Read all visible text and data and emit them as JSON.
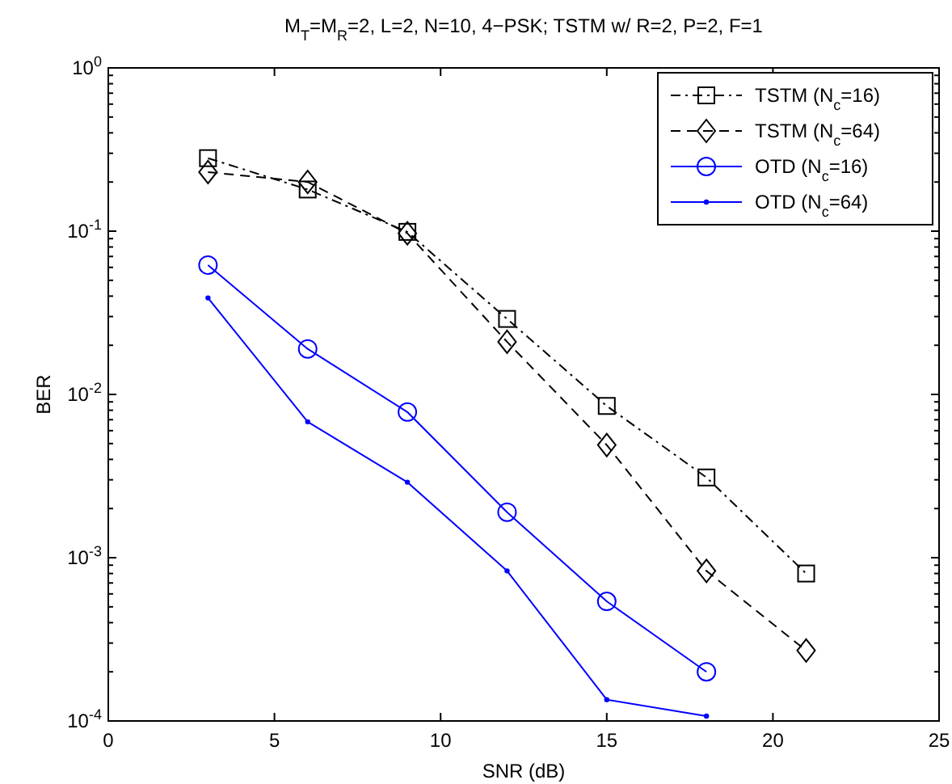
{
  "chart_data": {
    "type": "line",
    "title": "M$_{T}$=M$_{R}$=2, L=2, N=10, 4−PSK;   TSTM w/ R=2, P=2, F=1",
    "xlabel": "SNR (dB)",
    "ylabel": "BER",
    "log": "y",
    "grid": false,
    "legend": "top right",
    "x": [
      3,
      6,
      9,
      12,
      15,
      18,
      21
    ],
    "xlim": [
      0,
      25
    ],
    "xticks": [
      0,
      5,
      10,
      15,
      20,
      25
    ],
    "ylim": [
      0.0001,
      1
    ],
    "yticks": [
      {
        "value": 1,
        "label": "10$^{0}$"
      },
      {
        "value": 0.1,
        "label": "10$^{-1}$"
      },
      {
        "value": 0.01,
        "label": "10$^{-2}$"
      },
      {
        "value": 0.001,
        "label": "10$^{-3}$"
      },
      {
        "value": 0.0001,
        "label": "10$^{-4}$"
      }
    ],
    "series": [
      {
        "name": "TSTM (N$_{c}$=16)",
        "color": "#000000",
        "marker": "square",
        "line_style": "dashdot",
        "values": [
          0.28,
          0.18,
          0.099,
          0.029,
          0.0085,
          0.0031,
          0.0008
        ]
      },
      {
        "name": "TSTM (N$_{c}$=64)",
        "color": "#000000",
        "marker": "diamond",
        "line_style": "dashed",
        "values": [
          0.23,
          0.2,
          0.097,
          0.021,
          0.0049,
          0.00083,
          0.00027
        ]
      },
      {
        "name": "OTD (N$_{c}$=16)",
        "color": "#0000ff",
        "marker": "circle",
        "line_style": "solid",
        "values": [
          0.062,
          0.019,
          0.0078,
          0.0019,
          0.00054,
          0.0002,
          null
        ]
      },
      {
        "name": "OTD (N$_{c}$=64)",
        "color": "#0000ff",
        "marker": "point",
        "line_style": "solid",
        "values": [
          0.039,
          0.0068,
          0.0029,
          0.00083,
          0.000135,
          0.000107,
          null
        ]
      }
    ]
  }
}
